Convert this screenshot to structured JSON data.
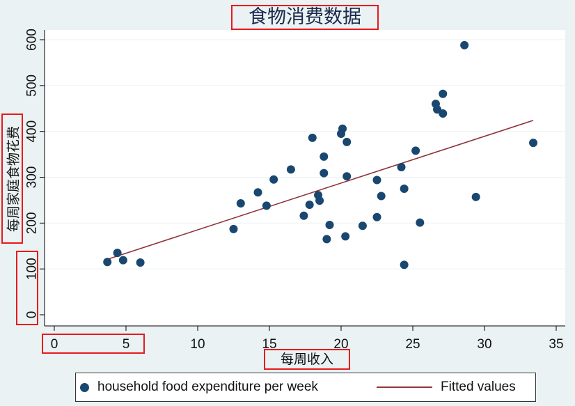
{
  "chart_data": {
    "type": "scatter",
    "title": "食物消费数据",
    "xlabel": "每周收入",
    "ylabel": "每周家庭食物花费",
    "xlim": [
      0,
      35
    ],
    "ylim": [
      0,
      600
    ],
    "xticks": [
      0,
      5,
      10,
      15,
      20,
      25,
      30,
      35
    ],
    "yticks": [
      0,
      100,
      200,
      300,
      400,
      500,
      600
    ],
    "grid": true,
    "series": [
      {
        "name": "household food expenditure per week",
        "kind": "scatter",
        "color": "#1a476f",
        "x": [
          3.7,
          4.4,
          4.8,
          6.0,
          12.5,
          13.0,
          14.2,
          14.8,
          15.3,
          16.5,
          17.4,
          17.8,
          18.0,
          18.4,
          18.5,
          18.8,
          18.8,
          19.0,
          19.2,
          20.0,
          20.1,
          20.3,
          20.4,
          20.4,
          21.5,
          22.5,
          22.5,
          22.8,
          24.2,
          24.4,
          24.4,
          25.2,
          25.5,
          26.6,
          26.7,
          27.1,
          27.1,
          28.6,
          29.4,
          33.4
        ],
        "y": [
          115,
          135,
          119,
          114,
          187,
          243,
          267,
          238,
          295,
          317,
          216,
          240,
          386,
          261,
          249,
          309,
          345,
          165,
          196,
          395,
          406,
          171,
          377,
          302,
          194,
          213,
          294,
          259,
          322,
          109,
          275,
          358,
          201,
          460,
          448,
          482,
          439,
          588,
          257,
          375
        ]
      },
      {
        "name": "Fitted values",
        "kind": "line",
        "color": "#90353b",
        "x": [
          3.7,
          33.4
        ],
        "y": [
          121,
          424
        ]
      }
    ],
    "legend_position": "bottom"
  }
}
